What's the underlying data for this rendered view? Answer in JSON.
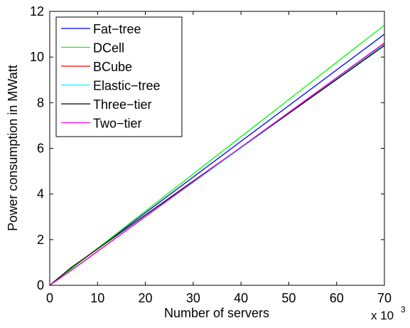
{
  "chart_data": {
    "type": "line",
    "title": "",
    "xlabel": "Number of servers",
    "ylabel": "Power consumption in MWatt",
    "x_multiplier": {
      "base": "x 10",
      "exponent": "3"
    },
    "xlim": [
      0,
      70
    ],
    "ylim": [
      0,
      12
    ],
    "xticks": [
      0,
      10,
      20,
      30,
      40,
      50,
      60,
      70
    ],
    "yticks": [
      0,
      2,
      4,
      6,
      8,
      10,
      12
    ],
    "grid": false,
    "legend_position": "top-left",
    "series": [
      {
        "name": "Fat−tree",
        "color": "#0000ff",
        "x": [
          0,
          4.5,
          70
        ],
        "y": [
          0,
          0.75,
          11.0
        ]
      },
      {
        "name": "DCell",
        "color": "#00ff00",
        "x": [
          0,
          4.5,
          70
        ],
        "y": [
          0,
          0.72,
          11.4
        ]
      },
      {
        "name": "BCube",
        "color": "#ff0000",
        "x": [
          0,
          4.5,
          70
        ],
        "y": [
          0,
          0.66,
          10.6
        ]
      },
      {
        "name": "Elastic−tree",
        "color": "#00ffff",
        "x": [
          0,
          4.5,
          70
        ],
        "y": [
          0,
          0.65,
          10.55
        ]
      },
      {
        "name": "Three−tier",
        "color": "#000000",
        "x": [
          0,
          4.5,
          70
        ],
        "y": [
          0,
          0.78,
          10.5
        ]
      },
      {
        "name": "Two−tier",
        "color": "#ff00ff",
        "x": [
          0,
          4.5,
          70
        ],
        "y": [
          0,
          0.65,
          10.62
        ]
      }
    ]
  }
}
